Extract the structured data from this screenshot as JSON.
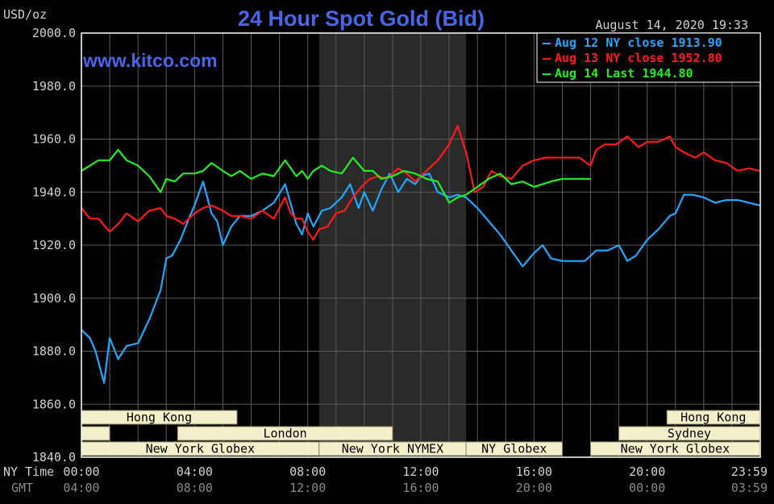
{
  "chart_data": {
    "type": "line",
    "title": "24 Hour Spot Gold (Bid)",
    "website": "www.kitco.com",
    "timestamp": "August 14, 2020 19:33",
    "yunit": "USD/oz",
    "ylim": [
      1840,
      2000
    ],
    "yticks": [
      "2000.0",
      "1980.0",
      "1960.0",
      "1940.0",
      "1920.0",
      "1900.0",
      "1880.0",
      "1860.0",
      "1840.0"
    ],
    "xlim": [
      0,
      24
    ],
    "xtick_labels_ny": [
      "00:00",
      "04:00",
      "08:00",
      "12:00",
      "16:00",
      "20:00",
      "23:59"
    ],
    "xtick_labels_gmt": [
      "04:00",
      "08:00",
      "12:00",
      "16:00",
      "20:00",
      "00:00",
      "03:59"
    ],
    "xaxis_label_ny": "NY Time",
    "xaxis_label_gmt": "GMT",
    "grid": true,
    "legend_placement": "top-right",
    "shaded_region_hours": [
      8.4,
      13.6
    ],
    "series": [
      {
        "name": "Aug 12 NY close 1913.90",
        "color": "#1ea8ff",
        "x": [
          0,
          0.3,
          0.5,
          0.8,
          1.0,
          1.3,
          1.6,
          2.0,
          2.4,
          2.8,
          3.0,
          3.2,
          3.5,
          3.8,
          4.0,
          4.3,
          4.6,
          4.8,
          5.0,
          5.3,
          5.6,
          6.0,
          6.4,
          6.8,
          7.2,
          7.6,
          7.8,
          8.0,
          8.2,
          8.5,
          8.8,
          9.2,
          9.5,
          9.8,
          10.0,
          10.3,
          10.6,
          10.9,
          11.2,
          11.5,
          11.8,
          12.0,
          12.3,
          12.6,
          13.0,
          13.3,
          13.6,
          14.0,
          14.4,
          14.8,
          15.2,
          15.6,
          16.0,
          16.3,
          16.6,
          17.0,
          17.4,
          17.8,
          18.2,
          18.6,
          19.0,
          19.3,
          19.6,
          20.0,
          20.4,
          20.8,
          21.0,
          21.3,
          21.6,
          22.0,
          22.4,
          22.8,
          23.2,
          23.6,
          23.98
        ],
        "y": [
          1888,
          1885,
          1880,
          1868,
          1885,
          1877,
          1882,
          1883,
          1892,
          1903,
          1915,
          1916,
          1922,
          1930,
          1935,
          1944,
          1932,
          1929,
          1920,
          1927,
          1931,
          1931,
          1933,
          1936,
          1943,
          1928,
          1924,
          1932,
          1927,
          1933,
          1934,
          1938,
          1943,
          1934,
          1940,
          1933,
          1941,
          1947,
          1940,
          1945,
          1943,
          1946,
          1947,
          1940,
          1938,
          1939,
          1938,
          1934,
          1929,
          1924,
          1918,
          1912,
          1917,
          1920,
          1915,
          1914,
          1914,
          1914,
          1918,
          1918,
          1920,
          1914,
          1916,
          1922,
          1926,
          1931,
          1932,
          1939,
          1939,
          1938,
          1936,
          1937,
          1937,
          1936,
          1935
        ]
      },
      {
        "name": "Aug 13 NY close 1952.80",
        "color": "#ff1a1a",
        "x": [
          0,
          0.3,
          0.6,
          1.0,
          1.3,
          1.6,
          2.0,
          2.4,
          2.8,
          3.0,
          3.3,
          3.6,
          4.0,
          4.3,
          4.6,
          5.0,
          5.3,
          5.6,
          6.0,
          6.4,
          6.8,
          7.2,
          7.4,
          7.6,
          7.8,
          8.0,
          8.2,
          8.4,
          8.7,
          9.0,
          9.3,
          9.6,
          9.9,
          10.2,
          10.5,
          10.8,
          11.2,
          11.5,
          11.8,
          12.2,
          12.6,
          13.0,
          13.3,
          13.6,
          13.9,
          14.2,
          14.5,
          14.8,
          15.2,
          15.6,
          16.0,
          16.4,
          16.8,
          17.2,
          17.6,
          18.0,
          18.2,
          18.5,
          18.9,
          19.3,
          19.7,
          20.0,
          20.4,
          20.8,
          21.0,
          21.3,
          21.7,
          22.0,
          22.4,
          22.8,
          23.2,
          23.6,
          23.98
        ],
        "y": [
          1934,
          1930,
          1930,
          1925,
          1928,
          1932,
          1929,
          1933,
          1934,
          1931,
          1930,
          1928,
          1932,
          1934,
          1935,
          1933,
          1931,
          1931,
          1930,
          1933,
          1930,
          1938,
          1932,
          1930,
          1930,
          1925,
          1922,
          1926,
          1927,
          1932,
          1933,
          1938,
          1942,
          1945,
          1946,
          1945,
          1949,
          1947,
          1944,
          1948,
          1952,
          1958,
          1965,
          1955,
          1940,
          1942,
          1948,
          1946,
          1945,
          1950,
          1952,
          1953,
          1953,
          1953,
          1953,
          1950,
          1956,
          1958,
          1958,
          1961,
          1957,
          1959,
          1959,
          1961,
          1957,
          1955,
          1953,
          1955,
          1952,
          1951,
          1948,
          1949,
          1948
        ]
      },
      {
        "name": "Aug 14 Last 1944.80",
        "color": "#22ee22",
        "x": [
          0,
          0.3,
          0.6,
          1.0,
          1.3,
          1.6,
          2.0,
          2.4,
          2.8,
          3.0,
          3.3,
          3.6,
          4.0,
          4.3,
          4.6,
          5.0,
          5.3,
          5.6,
          6.0,
          6.4,
          6.8,
          7.2,
          7.6,
          7.8,
          8.0,
          8.2,
          8.5,
          8.8,
          9.2,
          9.6,
          10.0,
          10.3,
          10.6,
          11.0,
          11.4,
          11.8,
          12.2,
          12.6,
          13.0,
          13.3,
          13.6,
          14.0,
          14.4,
          14.8,
          15.2,
          15.6,
          16.0,
          16.3,
          16.6,
          17.0,
          17.4,
          17.8,
          18.0
        ],
        "y": [
          1948,
          1950,
          1952,
          1952,
          1956,
          1952,
          1950,
          1946,
          1940,
          1945,
          1944,
          1947,
          1947,
          1948,
          1951,
          1948,
          1946,
          1948,
          1945,
          1947,
          1946,
          1952,
          1946,
          1948,
          1945,
          1948,
          1950,
          1948,
          1947,
          1953,
          1948,
          1948,
          1945,
          1946,
          1948,
          1947,
          1945,
          1944,
          1936,
          1938,
          1939,
          1942,
          1945,
          1947,
          1943,
          1944,
          1942,
          1943,
          1944,
          1945,
          1945,
          1945,
          1945
        ]
      }
    ],
    "sessions": [
      {
        "label": "Hong Kong",
        "start": 0,
        "end": 5.5,
        "row": 0
      },
      {
        "label": "",
        "start": 0,
        "end": 1,
        "row": 1
      },
      {
        "label": "London",
        "start": 3.4,
        "end": 11,
        "row": 1
      },
      {
        "label": "New York Globex",
        "start": 0,
        "end": 8.4,
        "row": 2
      },
      {
        "label": "New York NYMEX",
        "start": 8.4,
        "end": 13.6,
        "row": 2
      },
      {
        "label": "NY Globex",
        "start": 13.6,
        "end": 17,
        "row": 2
      },
      {
        "label": "New York Globex",
        "start": 18,
        "end": 23.98,
        "row": 2
      },
      {
        "label": "Sydney",
        "start": 19,
        "end": 23.98,
        "row": 1
      },
      {
        "label": "Hong Kong",
        "start": 20.7,
        "end": 23.98,
        "row": 0
      }
    ]
  }
}
